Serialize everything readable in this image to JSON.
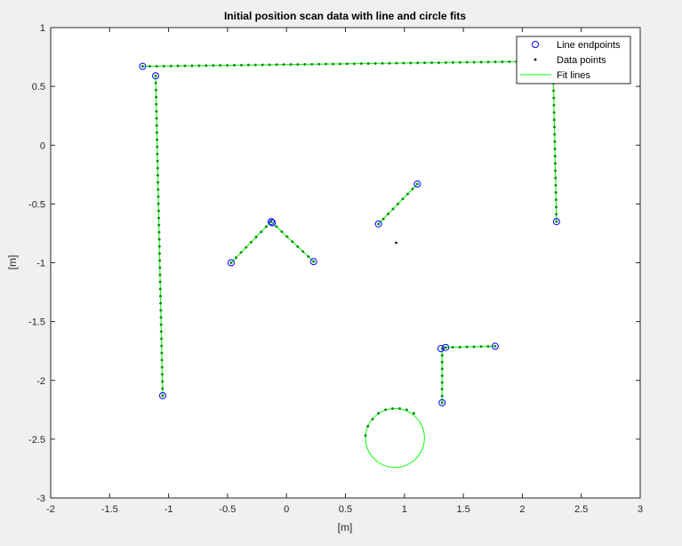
{
  "chart_data": {
    "type": "scatter",
    "title": "Initial position scan data with line and circle fits",
    "xlabel": "[m]",
    "ylabel": "[m]",
    "xlim": [
      -2,
      3
    ],
    "ylim": [
      -3,
      1
    ],
    "xticks": [
      -2,
      -1.5,
      -1,
      -0.5,
      0,
      0.5,
      1,
      1.5,
      2,
      2.5,
      3
    ],
    "xtick_labels": [
      "-2",
      "-1.5",
      "-1",
      "-0.5",
      "0",
      "0.5",
      "1",
      "1.5",
      "2",
      "2.5",
      "3"
    ],
    "yticks": [
      1,
      0.5,
      0,
      -0.5,
      -1,
      -1.5,
      -2,
      -2.5,
      -3
    ],
    "ytick_labels": [
      "1",
      "0.5",
      "0",
      "-0.5",
      "-1",
      "-1.5",
      "-2",
      "-2.5",
      "-3"
    ],
    "grid": false,
    "legend_position": "top-right",
    "legend": [
      {
        "label": "Line endpoints",
        "marker": "circle",
        "color": "#0000ff"
      },
      {
        "label": "Data points",
        "marker": "dot",
        "color": "#000000"
      },
      {
        "label": "Fit lines",
        "marker": "line",
        "color": "#00ff00"
      }
    ],
    "colors": {
      "endpoints": "#0000ff",
      "points": "#000000",
      "fit": "#00ff00",
      "point_fill": "#1a8a1a"
    },
    "fit_lines": [
      {
        "x1": -1.22,
        "y1": 0.67,
        "x2": 1.95,
        "y2": 0.71
      },
      {
        "x1": -1.11,
        "y1": 0.59,
        "x2": -1.05,
        "y2": -2.13
      },
      {
        "x1": 2.26,
        "y1": 0.71,
        "x2": 2.29,
        "y2": -0.65
      },
      {
        "x1": -0.47,
        "y1": -1.0,
        "x2": -0.13,
        "y2": -0.65
      },
      {
        "x1": -0.13,
        "y1": -0.65,
        "x2": 0.23,
        "y2": -0.99
      },
      {
        "x1": 0.78,
        "y1": -0.67,
        "x2": 1.11,
        "y2": -0.33
      },
      {
        "x1": 1.32,
        "y1": -1.73,
        "x2": 1.32,
        "y2": -2.19
      },
      {
        "x1": 1.35,
        "y1": -1.72,
        "x2": 1.77,
        "y2": -1.71
      }
    ],
    "endpoints": [
      {
        "x": -1.22,
        "y": 0.67
      },
      {
        "x": -1.11,
        "y": 0.59
      },
      {
        "x": -1.05,
        "y": -2.13
      },
      {
        "x": 2.29,
        "y": -0.65
      },
      {
        "x": -0.47,
        "y": -1.0
      },
      {
        "x": -0.13,
        "y": -0.65
      },
      {
        "x": -0.12,
        "y": -0.66
      },
      {
        "x": 0.23,
        "y": -0.99
      },
      {
        "x": 0.78,
        "y": -0.67
      },
      {
        "x": 1.11,
        "y": -0.33
      },
      {
        "x": 1.31,
        "y": -1.73
      },
      {
        "x": 1.35,
        "y": -1.72
      },
      {
        "x": 1.32,
        "y": -2.19
      },
      {
        "x": 1.77,
        "y": -1.71
      }
    ],
    "isolated_points": [
      {
        "x": 0.93,
        "y": -0.83
      }
    ],
    "circle_fit": {
      "cx": 0.92,
      "cy": -2.49,
      "r": 0.25
    },
    "circle_points": [
      {
        "x": 0.67,
        "y": -2.47
      },
      {
        "x": 0.69,
        "y": -2.39
      },
      {
        "x": 0.73,
        "y": -2.33
      },
      {
        "x": 0.78,
        "y": -2.28
      },
      {
        "x": 0.84,
        "y": -2.25
      },
      {
        "x": 0.9,
        "y": -2.24
      },
      {
        "x": 0.96,
        "y": -2.24
      },
      {
        "x": 1.02,
        "y": -2.25
      },
      {
        "x": 1.08,
        "y": -2.28
      }
    ]
  }
}
